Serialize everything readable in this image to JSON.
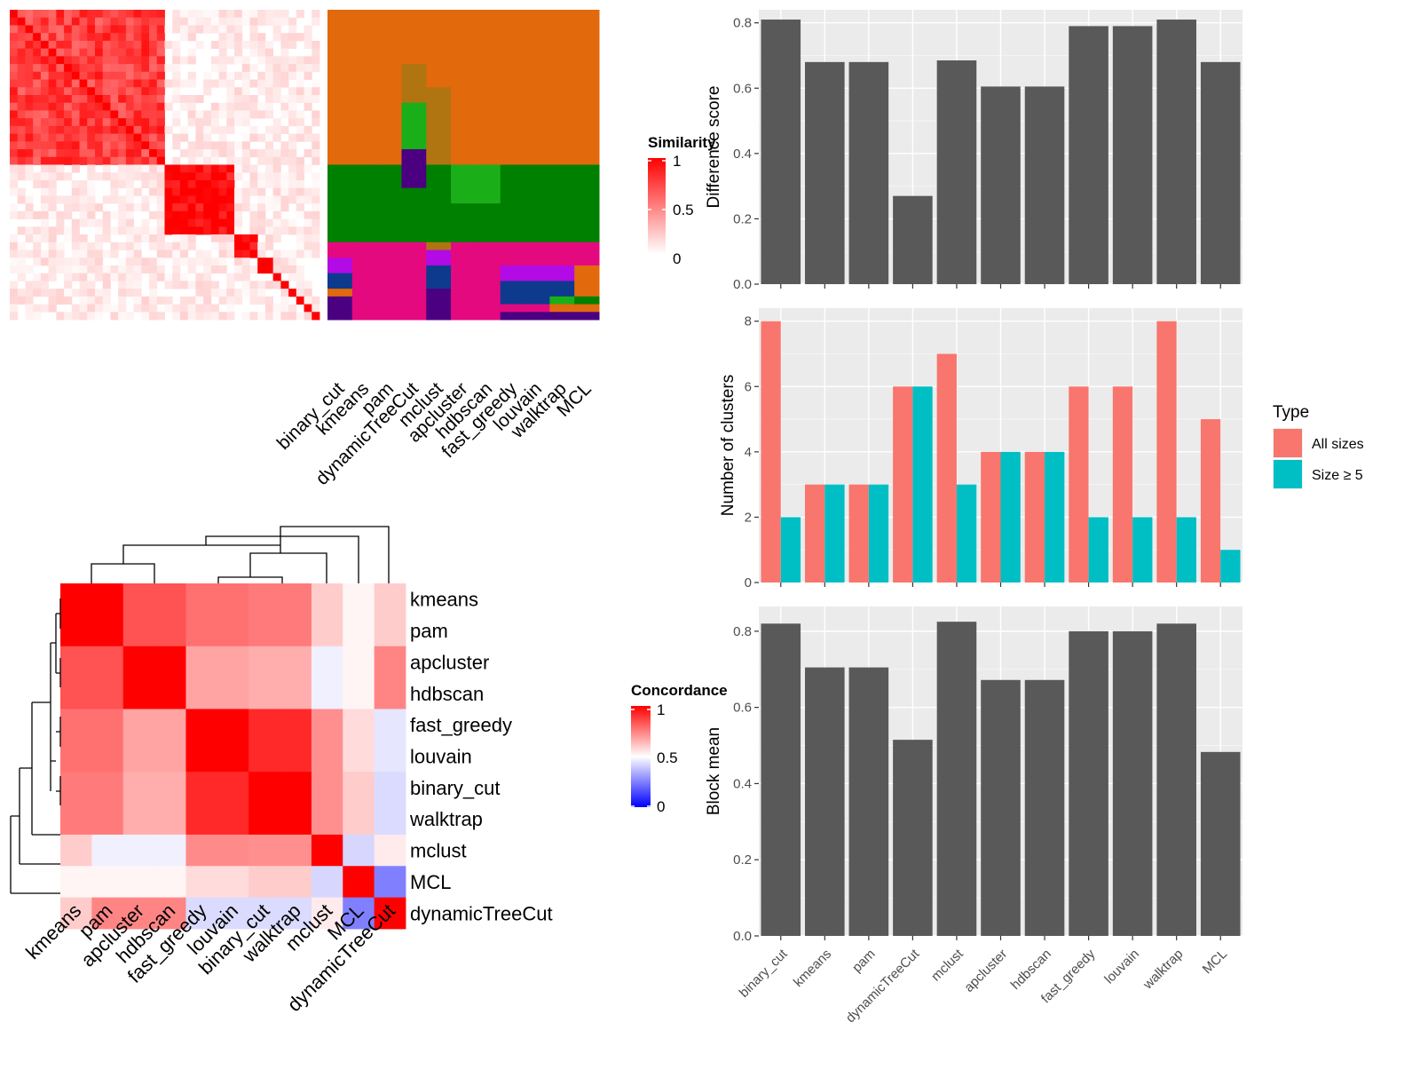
{
  "chart_data": [
    {
      "type": "heatmap",
      "panel": "similarity-matrix",
      "legend": {
        "title": "Similarity",
        "ticks": [
          "1",
          "0.5",
          "0"
        ]
      },
      "legend_placement": "right",
      "color_scale": {
        "low": "#ffffff",
        "high": "#ff0000"
      },
      "blocks": [
        {
          "size": 20,
          "intensity": 0.75
        },
        {
          "size": 9,
          "intensity": 0.97
        },
        {
          "size": 3,
          "intensity": 0.92
        },
        {
          "size": 2,
          "intensity": 0.95
        },
        {
          "size": 1,
          "intensity": 1
        },
        {
          "size": 1,
          "intensity": 1
        },
        {
          "size": 1,
          "intensity": 1
        },
        {
          "size": 1,
          "intensity": 1
        },
        {
          "size": 1,
          "intensity": 1
        },
        {
          "size": 1,
          "intensity": 1
        }
      ],
      "annotation_columns": [
        "binary_cut",
        "kmeans",
        "pam",
        "dynamicTreeCut",
        "mclust",
        "apcluster",
        "hdbscan",
        "fast_greedy",
        "louvain",
        "walktrap",
        "MCL"
      ],
      "annotation_segments": [
        [
          [
            "#E2690C",
            20
          ],
          [
            "#008000",
            10
          ],
          [
            "#E5097F",
            2
          ],
          [
            "#B30BE5",
            2
          ],
          [
            "#0E3A8E",
            2
          ],
          [
            "#E2690C",
            1
          ],
          [
            "#4B0082",
            3
          ]
        ],
        [
          [
            "#E2690C",
            20
          ],
          [
            "#008000",
            10
          ],
          [
            "#E5097F",
            10
          ]
        ],
        [
          [
            "#E2690C",
            20
          ],
          [
            "#008000",
            10
          ],
          [
            "#E5097F",
            10
          ]
        ],
        [
          [
            "#E2690C",
            7
          ],
          [
            "#B07510",
            5
          ],
          [
            "#1AAF18",
            6
          ],
          [
            "#4B0082",
            5
          ],
          [
            "#008000",
            7
          ],
          [
            "#E5097F",
            10
          ]
        ],
        [
          [
            "#E2690C",
            10
          ],
          [
            "#B07510",
            10
          ],
          [
            "#008000",
            10
          ],
          [
            "#B07510",
            1
          ],
          [
            "#B30BE5",
            2
          ],
          [
            "#0E3A8E",
            3
          ],
          [
            "#4B0082",
            4
          ]
        ],
        [
          [
            "#E2690C",
            20
          ],
          [
            "#1AAF18",
            5
          ],
          [
            "#008000",
            5
          ],
          [
            "#E5097F",
            10
          ]
        ],
        [
          [
            "#E2690C",
            20
          ],
          [
            "#1AAF18",
            5
          ],
          [
            "#008000",
            5
          ],
          [
            "#E5097F",
            10
          ]
        ],
        [
          [
            "#E2690C",
            20
          ],
          [
            "#008000",
            10
          ],
          [
            "#E5097F",
            3
          ],
          [
            "#B30BE5",
            2
          ],
          [
            "#0E3A8E",
            3
          ],
          [
            "#E5097F",
            1
          ],
          [
            "#4B0082",
            1
          ]
        ],
        [
          [
            "#E2690C",
            20
          ],
          [
            "#008000",
            10
          ],
          [
            "#E5097F",
            3
          ],
          [
            "#B30BE5",
            2
          ],
          [
            "#0E3A8E",
            3
          ],
          [
            "#E5097F",
            1
          ],
          [
            "#4B0082",
            1
          ]
        ],
        [
          [
            "#E2690C",
            20
          ],
          [
            "#008000",
            10
          ],
          [
            "#E5097F",
            3
          ],
          [
            "#B30BE5",
            2
          ],
          [
            "#0E3A8E",
            2
          ],
          [
            "#1AAF18",
            1
          ],
          [
            "#E2690C",
            1
          ],
          [
            "#4B0082",
            1
          ]
        ],
        [
          [
            "#E2690C",
            20
          ],
          [
            "#008000",
            10
          ],
          [
            "#E5097F",
            3
          ],
          [
            "#E2690C",
            4
          ],
          [
            "#008000",
            1
          ],
          [
            "#E2690C",
            1
          ],
          [
            "#4B0082",
            1
          ]
        ]
      ]
    },
    {
      "type": "heatmap",
      "panel": "concordance-matrix",
      "legend": {
        "title": "Concordance",
        "ticks": [
          "1",
          "0.5",
          "0"
        ]
      },
      "legend_placement": "right",
      "color_scale": {
        "low": "#0000ff",
        "mid": "#ffffff",
        "high": "#ff0000",
        "midpoint": 0.5
      },
      "rows": [
        "kmeans",
        "pam",
        "apcluster",
        "hdbscan",
        "fast_greedy",
        "louvain",
        "binary_cut",
        "walktrap",
        "mclust",
        "MCL",
        "dynamicTreeCut"
      ],
      "columns": [
        "kmeans",
        "pam",
        "apcluster",
        "hdbscan",
        "fast_greedy",
        "louvain",
        "binary_cut",
        "walktrap",
        "mclust",
        "MCL",
        "dynamicTreeCut"
      ],
      "values": [
        [
          1,
          1,
          0.84,
          0.84,
          0.78,
          0.78,
          0.76,
          0.76,
          0.6,
          0.52,
          0.6
        ],
        [
          1,
          1,
          0.84,
          0.84,
          0.78,
          0.78,
          0.76,
          0.76,
          0.6,
          0.52,
          0.6
        ],
        [
          0.84,
          0.84,
          1,
          1,
          0.68,
          0.68,
          0.66,
          0.66,
          0.47,
          0.52,
          0.74
        ],
        [
          0.84,
          0.84,
          1,
          1,
          0.68,
          0.68,
          0.66,
          0.66,
          0.47,
          0.52,
          0.74
        ],
        [
          0.78,
          0.78,
          0.68,
          0.68,
          1,
          1,
          0.92,
          0.92,
          0.72,
          0.57,
          0.45
        ],
        [
          0.78,
          0.78,
          0.68,
          0.68,
          1,
          1,
          0.92,
          0.92,
          0.72,
          0.57,
          0.45
        ],
        [
          0.76,
          0.76,
          0.66,
          0.66,
          0.92,
          0.92,
          1,
          1,
          0.72,
          0.6,
          0.43
        ],
        [
          0.76,
          0.76,
          0.66,
          0.66,
          0.92,
          0.92,
          1,
          1,
          0.72,
          0.6,
          0.43
        ],
        [
          0.6,
          0.47,
          0.47,
          0.47,
          0.73,
          0.73,
          0.72,
          0.72,
          1,
          0.42,
          0.54
        ],
        [
          0.52,
          0.52,
          0.52,
          0.52,
          0.57,
          0.57,
          0.6,
          0.6,
          0.42,
          1,
          0.25
        ],
        [
          0.6,
          0.74,
          0.74,
          0.74,
          0.43,
          0.43,
          0.43,
          0.43,
          0.54,
          0.25,
          1
        ]
      ],
      "dendrogram": "rows and columns clustered"
    },
    {
      "type": "bar",
      "panel": "difference-score",
      "categories": [
        "binary_cut",
        "kmeans",
        "pam",
        "dynamicTreeCut",
        "mclust",
        "apcluster",
        "hdbscan",
        "fast_greedy",
        "louvain",
        "walktrap",
        "MCL"
      ],
      "values": [
        0.81,
        0.68,
        0.68,
        0.27,
        0.685,
        0.605,
        0.605,
        0.79,
        0.79,
        0.81,
        0.68
      ],
      "xlabel": "",
      "ylabel": "Difference score",
      "ylim": [
        0,
        0.84
      ],
      "yticks": [
        "0.0",
        "0.2",
        "0.4",
        "0.6",
        "0.8"
      ],
      "bar_color": "#595959",
      "grid": true
    },
    {
      "type": "bar",
      "panel": "number-of-clusters",
      "categories": [
        "binary_cut",
        "kmeans",
        "pam",
        "dynamicTreeCut",
        "mclust",
        "apcluster",
        "hdbscan",
        "fast_greedy",
        "louvain",
        "walktrap",
        "MCL"
      ],
      "series": [
        {
          "name": "All sizes",
          "values": [
            8,
            3,
            3,
            6,
            7,
            4,
            4,
            6,
            6,
            8,
            5
          ],
          "color": "#F8766D"
        },
        {
          "name": "Size ≥ 5",
          "values": [
            2,
            3,
            3,
            6,
            3,
            4,
            4,
            2,
            2,
            2,
            1
          ],
          "color": "#00BFC4"
        }
      ],
      "xlabel": "",
      "ylabel": "Number of clusters",
      "ylim": [
        0,
        8.4
      ],
      "yticks": [
        "0",
        "2",
        "4",
        "6",
        "8"
      ],
      "legend": {
        "title": "Type",
        "placement": "right"
      },
      "grid": true
    },
    {
      "type": "bar",
      "panel": "block-mean",
      "categories": [
        "binary_cut",
        "kmeans",
        "pam",
        "dynamicTreeCut",
        "mclust",
        "apcluster",
        "hdbscan",
        "fast_greedy",
        "louvain",
        "walktrap",
        "MCL"
      ],
      "values": [
        0.82,
        0.705,
        0.705,
        0.515,
        0.825,
        0.672,
        0.672,
        0.8,
        0.8,
        0.82,
        0.483
      ],
      "xlabel": "",
      "ylabel": "Block mean",
      "ylim": [
        0,
        0.865
      ],
      "yticks": [
        "0.0",
        "0.2",
        "0.4",
        "0.6",
        "0.8"
      ],
      "bar_color": "#595959",
      "grid": true
    }
  ]
}
